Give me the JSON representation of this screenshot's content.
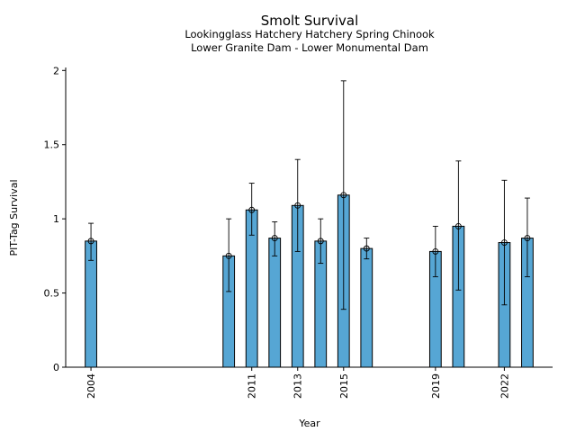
{
  "chart_data": {
    "type": "bar",
    "title": "Smolt Survival",
    "subtitle_lines": [
      "Lookingglass Hatchery Hatchery Spring Chinook",
      "Lower Granite Dam - Lower Monumental Dam"
    ],
    "xlabel": "Year",
    "ylabel": "PIT-Tag Survival",
    "xlim": [
      2002.9,
      2024.1
    ],
    "ylim": [
      0,
      2.02
    ],
    "x_ticks": [
      2004,
      2011,
      2013,
      2015,
      2019,
      2022
    ],
    "y_ticks": [
      {
        "value": 0,
        "label": "0"
      },
      {
        "value": 0.5,
        "label": "0.5"
      },
      {
        "value": 1,
        "label": "1"
      },
      {
        "value": 1.5,
        "label": "1.5"
      },
      {
        "value": 2,
        "label": "2"
      }
    ],
    "grid": false,
    "colors": {
      "bar": "#56a6d4",
      "edge": "#000000"
    },
    "points": [
      {
        "year": 2004,
        "value": 0.85,
        "lower": 0.72,
        "upper": 0.97
      },
      {
        "year": 2010,
        "value": 0.75,
        "lower": 0.51,
        "upper": 1.0
      },
      {
        "year": 2011,
        "value": 1.06,
        "lower": 0.89,
        "upper": 1.24
      },
      {
        "year": 2012,
        "value": 0.87,
        "lower": 0.75,
        "upper": 0.98
      },
      {
        "year": 2013,
        "value": 1.09,
        "lower": 0.78,
        "upper": 1.4
      },
      {
        "year": 2014,
        "value": 0.85,
        "lower": 0.7,
        "upper": 1.0
      },
      {
        "year": 2015,
        "value": 1.16,
        "lower": 0.39,
        "upper": 1.93
      },
      {
        "year": 2016,
        "value": 0.8,
        "lower": 0.73,
        "upper": 0.87
      },
      {
        "year": 2019,
        "value": 0.78,
        "lower": 0.61,
        "upper": 0.95
      },
      {
        "year": 2020,
        "value": 0.95,
        "lower": 0.52,
        "upper": 1.39
      },
      {
        "year": 2022,
        "value": 0.84,
        "lower": 0.42,
        "upper": 1.26
      },
      {
        "year": 2023,
        "value": 0.87,
        "lower": 0.61,
        "upper": 1.14
      }
    ]
  }
}
